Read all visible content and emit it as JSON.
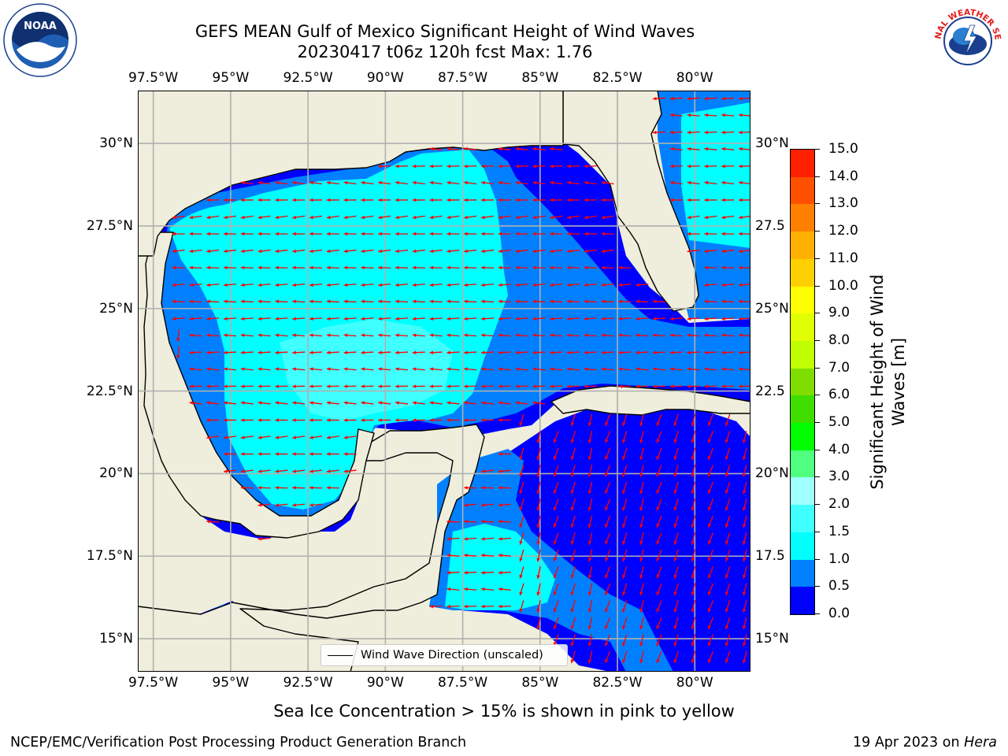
{
  "title_line1": "GEFS MEAN Gulf of Mexico Significant Height of Wind Waves",
  "title_line2": "20230417 t06z 120h fcst   Max: 1.76",
  "lon_ticks": [
    "97.5°W",
    "95°W",
    "92.5°W",
    "90°W",
    "87.5°W",
    "85°W",
    "82.5°W",
    "80°W"
  ],
  "lat_ticks": [
    "30°N",
    "27.5°N",
    "25°N",
    "22.5°N",
    "20°N",
    "17.5°N",
    "15°N"
  ],
  "right_lat_ticks": [
    "30°N",
    "27.5",
    "25°N",
    "22.5",
    "20°N",
    "17.5",
    "15°N"
  ],
  "map": {
    "lon_min": -98,
    "lon_max": -78.2,
    "lat_min": 14,
    "lat_max": 31.6,
    "lon_values": [
      -97.5,
      -95,
      -92.5,
      -90,
      -87.5,
      -85,
      -82.5,
      -80
    ],
    "lat_values": [
      30,
      27.5,
      25,
      22.5,
      20,
      17.5,
      15
    ],
    "land_color": "#efeedc",
    "arrow_color": "#ff0000",
    "grid_color": "#b0b0b0"
  },
  "legend": {
    "label": "Wind Wave Direction (unscaled)"
  },
  "colorbar": {
    "label_line1": "Significant Height of Wind",
    "label_line2": "Waves [m]",
    "ticks": [
      "0.0",
      "0.5",
      "1.0",
      "1.5",
      "2.0",
      "3.0",
      "4.0",
      "5.0",
      "6.0",
      "7.0",
      "8.0",
      "9.0",
      "10.0",
      "11.0",
      "12.0",
      "13.0",
      "14.0",
      "15.0"
    ],
    "colors": [
      "#0000ff",
      "#0080ff",
      "#00ffff",
      "#40ffff",
      "#a0ffff",
      "#50ff80",
      "#00ff00",
      "#40dd00",
      "#80dd00",
      "#c0ff00",
      "#e0ff00",
      "#ffff00",
      "#ffd000",
      "#ffb000",
      "#ff8000",
      "#ff5000",
      "#ff2000"
    ]
  },
  "ice_note": "Sea Ice Concentration > 15% is shown in pink to yellow",
  "footer_left": "NCEP/EMC/Verification Post Processing Product Generation Branch",
  "footer_right_date": "19 Apr 2023 on",
  "footer_right_host": "Hera",
  "logos": {
    "noaa_text": "NOAA",
    "nws_text": "NATIONAL WEATHER SERVICE"
  }
}
